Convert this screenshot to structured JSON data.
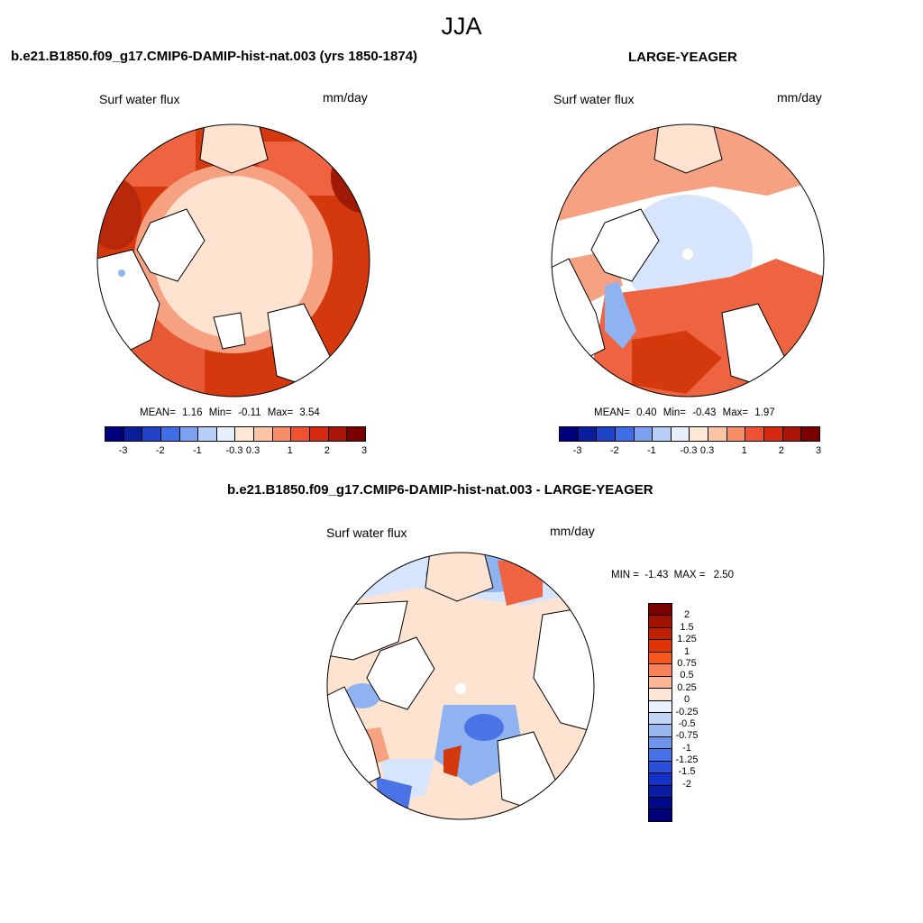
{
  "figure": {
    "season_title": "JJA"
  },
  "panels": [
    {
      "heading": "b.e21.B1850.f09_g17.CMIP6-DAMIP-hist-nat.003 (yrs 1850-1874)",
      "variable": "Surf water flux",
      "units": "mm/day",
      "stats": {
        "mean_label": "MEAN=",
        "mean": "1.16",
        "min_label": "Min=",
        "min": "-0.11",
        "max_label": "Max=",
        "max": "3.54"
      }
    },
    {
      "heading": "LARGE-YEAGER",
      "variable": "Surf water flux",
      "units": "mm/day",
      "stats": {
        "mean_label": "MEAN=",
        "mean": "0.40",
        "min_label": "Min=",
        "min": "-0.43",
        "max_label": "Max=",
        "max": "1.97"
      }
    },
    {
      "heading": "b.e21.B1850.f09_g17.CMIP6-DAMIP-hist-nat.003 - LARGE-YEAGER",
      "variable": "Surf water flux",
      "units": "mm/day",
      "stats": {
        "min_label": "MIN =",
        "min": "-1.43",
        "max_label": "MAX =",
        "max": "2.50"
      }
    }
  ],
  "colorbar_abs": {
    "colors": [
      "#00007f",
      "#0a1f9e",
      "#1f44c8",
      "#3f6ee8",
      "#7aa2f0",
      "#b8d0f8",
      "#e6f0fc",
      "#fde8d6",
      "#fbc4a4",
      "#f88e68",
      "#ef5230",
      "#d52a10",
      "#a81405",
      "#7a0000"
    ],
    "tick_labels": [
      "-3",
      "-2",
      "-1",
      "-0.3",
      "0.3",
      "1",
      "2",
      "3"
    ]
  },
  "colorbar_diff": {
    "colors": [
      "#7a0000",
      "#a31200",
      "#c21f00",
      "#e03306",
      "#f4581e",
      "#f8815a",
      "#fbb592",
      "#fde6d6",
      "#e8f1fd",
      "#c0d6f6",
      "#98b8ef",
      "#6f95ea",
      "#4670e6",
      "#2a4fdd",
      "#1530c4",
      "#0a1ea4",
      "#000a8a",
      "#00007a"
    ],
    "tick_labels": [
      "2",
      "1.5",
      "1.25",
      "1",
      "0.75",
      "0.5",
      "0.25",
      "0",
      "-0.25",
      "-0.5",
      "-0.75",
      "-1",
      "-1.25",
      "-1.5",
      "-2"
    ]
  },
  "map_colors": {
    "land": "#ffffff",
    "ocean_strong": "#d4380d",
    "ocean_mid": "#ee6440",
    "ocean_light": "#f7a183",
    "ocean_pale": "#fde3d0",
    "ocean_blue_pale": "#d6e5fb",
    "ocean_blue": "#8fb3f1",
    "ocean_blue_strong": "#4a74e6",
    "coast": "#000000"
  }
}
